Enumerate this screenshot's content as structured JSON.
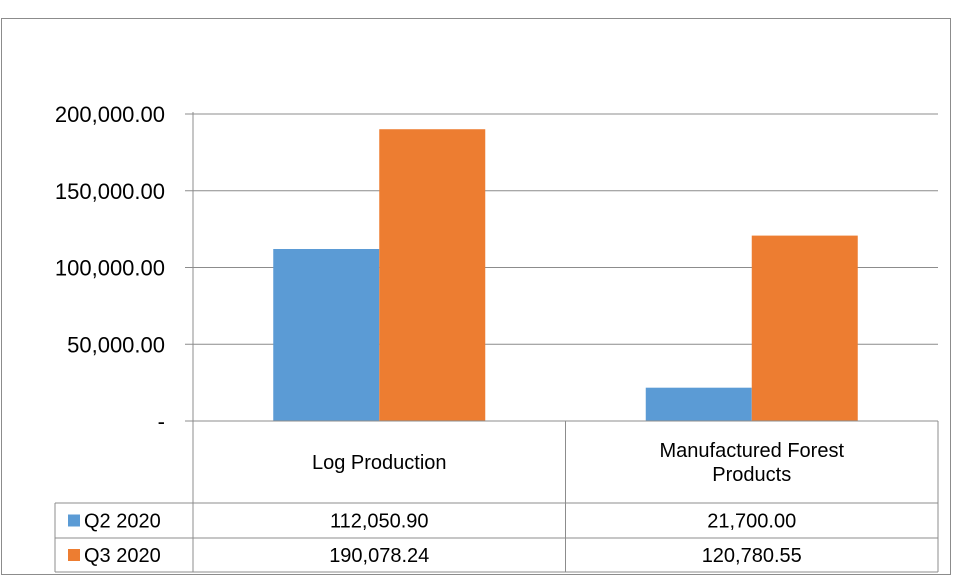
{
  "title": "",
  "chart_data": {
    "type": "bar",
    "title": "",
    "categories": [
      "Log Production",
      "Manufactured Forest Products"
    ],
    "category_lines": [
      [
        "Log Production"
      ],
      [
        "Manufactured Forest",
        "Products"
      ]
    ],
    "series": [
      {
        "name": "Q2 2020",
        "values": [
          112050.9,
          21700.0
        ],
        "color": "#5b9bd5",
        "value_labels": [
          "112,050.90",
          "21,700.00"
        ]
      },
      {
        "name": "Q3 2020",
        "values": [
          190078.24,
          120780.55
        ],
        "color": "#ed7d31",
        "value_labels": [
          "190,078.24",
          "120,780.55"
        ]
      }
    ],
    "ylim": [
      0,
      200000
    ],
    "y_ticks": [
      0,
      50000,
      100000,
      150000,
      200000
    ],
    "y_tick_labels": [
      "-",
      "50,000.00",
      "100,000.00",
      "150,000.00",
      "200,000.00"
    ],
    "grid": true,
    "legend": "data-table",
    "xlabel": "",
    "ylabel": ""
  }
}
